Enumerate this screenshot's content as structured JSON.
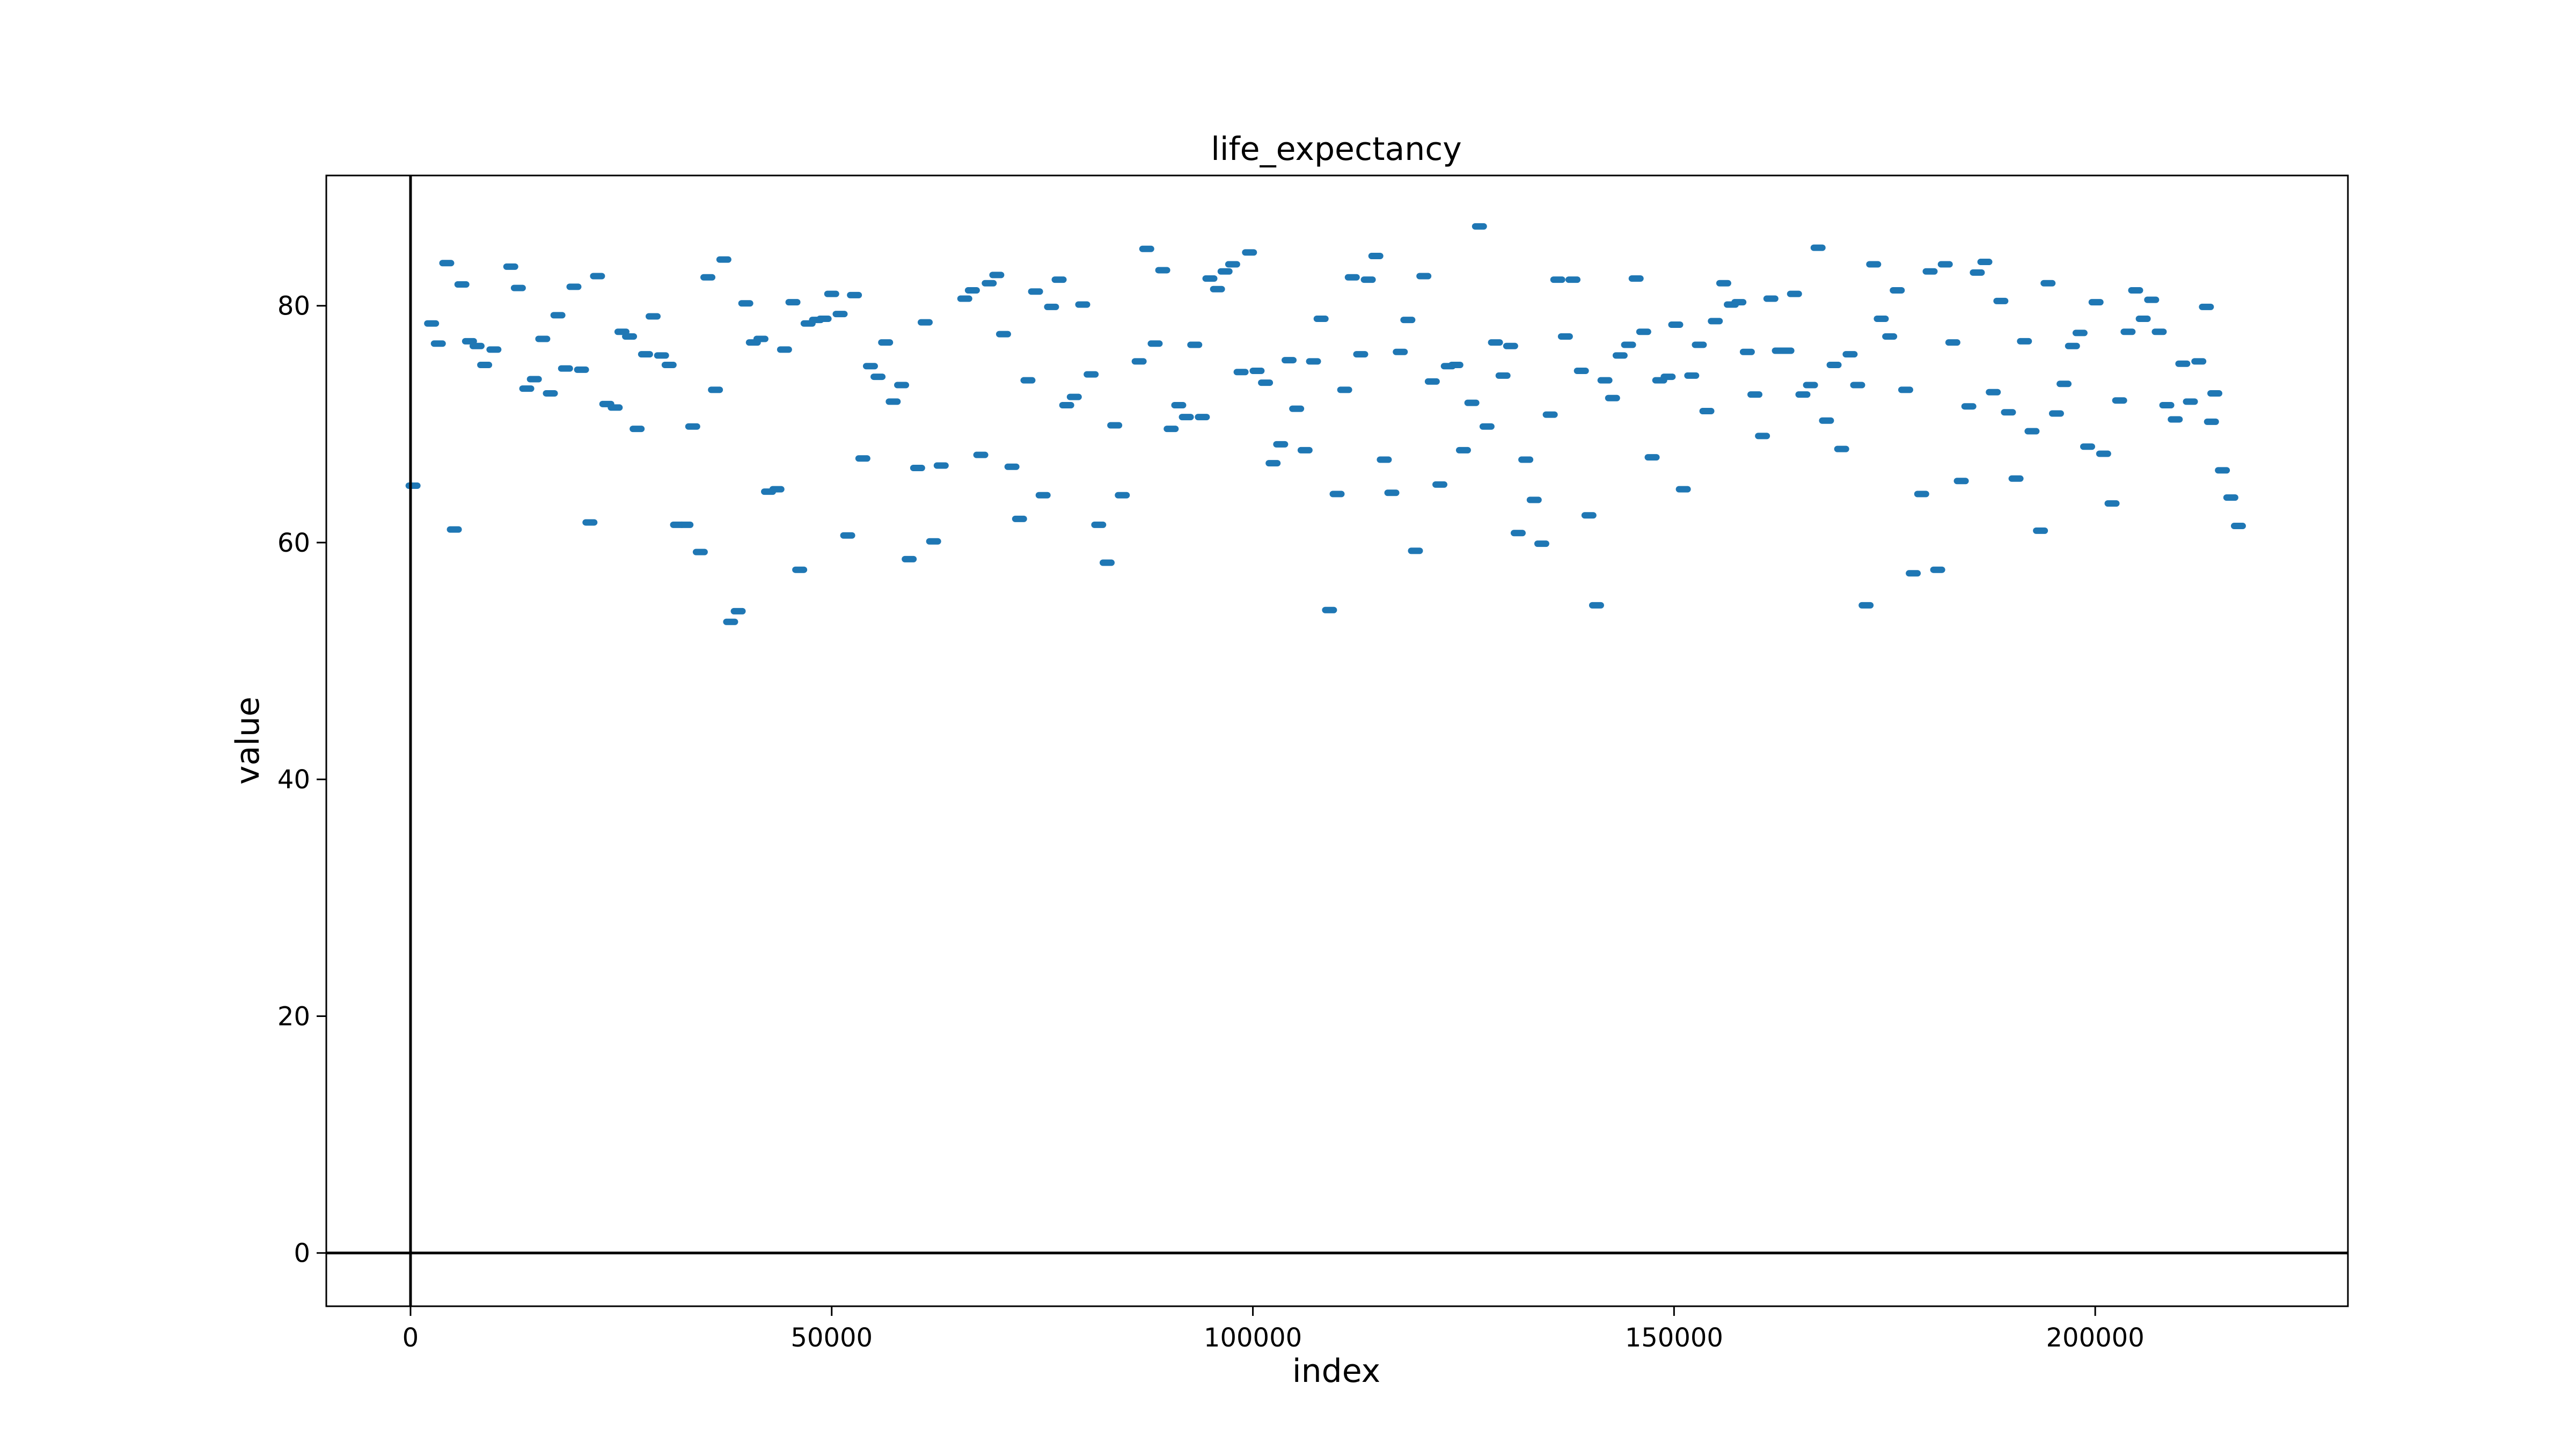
{
  "chart_data": {
    "type": "scatter",
    "title": "life_expectancy",
    "xlabel": "index",
    "ylabel": "value",
    "xlim": [
      -10000,
      230000
    ],
    "ylim": [
      -4.5,
      91
    ],
    "xticks": [
      0,
      50000,
      100000,
      150000,
      200000
    ],
    "yticks": [
      0,
      20,
      40,
      60,
      80
    ],
    "reference_lines": {
      "x": 0,
      "y": 0
    },
    "grid": false,
    "legend": "none",
    "colors": {
      "points": "#1f77b4",
      "axes": "#000000"
    },
    "series": [
      {
        "points": [
          [
            300,
            64.8
          ],
          [
            2500,
            78.5
          ],
          [
            3300,
            76.8
          ],
          [
            4300,
            83.6
          ],
          [
            5200,
            61.1
          ],
          [
            6100,
            81.8
          ],
          [
            7000,
            77.0
          ],
          [
            7900,
            76.6
          ],
          [
            8800,
            75.0
          ],
          [
            9900,
            76.3
          ],
          [
            11900,
            83.3
          ],
          [
            12800,
            81.5
          ],
          [
            13800,
            73.0
          ],
          [
            14700,
            73.8
          ],
          [
            15700,
            77.2
          ],
          [
            16600,
            72.6
          ],
          [
            17500,
            79.2
          ],
          [
            18400,
            74.7
          ],
          [
            19400,
            81.6
          ],
          [
            20300,
            74.6
          ],
          [
            21300,
            61.7
          ],
          [
            22200,
            82.5
          ],
          [
            23300,
            71.7
          ],
          [
            24300,
            71.4
          ],
          [
            25100,
            77.8
          ],
          [
            26000,
            77.4
          ],
          [
            26900,
            69.6
          ],
          [
            27900,
            75.9
          ],
          [
            28800,
            79.1
          ],
          [
            29800,
            75.8
          ],
          [
            30700,
            75.0
          ],
          [
            31700,
            61.5
          ],
          [
            32700,
            61.5
          ],
          [
            33500,
            69.8
          ],
          [
            34400,
            59.2
          ],
          [
            35300,
            82.4
          ],
          [
            36200,
            72.9
          ],
          [
            37200,
            83.9
          ],
          [
            38000,
            53.3
          ],
          [
            38900,
            54.2
          ],
          [
            39800,
            80.2
          ],
          [
            40700,
            76.9
          ],
          [
            41600,
            77.2
          ],
          [
            42500,
            64.3
          ],
          [
            43500,
            64.5
          ],
          [
            44400,
            76.3
          ],
          [
            45400,
            80.3
          ],
          [
            46200,
            57.7
          ],
          [
            47200,
            78.5
          ],
          [
            48200,
            78.8
          ],
          [
            49100,
            78.9
          ],
          [
            50000,
            81.0
          ],
          [
            51000,
            79.3
          ],
          [
            51900,
            60.6
          ],
          [
            52700,
            80.9
          ],
          [
            53700,
            67.1
          ],
          [
            54600,
            74.9
          ],
          [
            55500,
            74.0
          ],
          [
            56400,
            76.9
          ],
          [
            57300,
            71.9
          ],
          [
            58300,
            73.3
          ],
          [
            59200,
            58.6
          ],
          [
            60200,
            66.3
          ],
          [
            61100,
            78.6
          ],
          [
            62100,
            60.1
          ],
          [
            63000,
            66.5
          ],
          [
            65800,
            80.6
          ],
          [
            66700,
            81.3
          ],
          [
            67700,
            67.4
          ],
          [
            68700,
            81.9
          ],
          [
            69600,
            82.6
          ],
          [
            70400,
            77.6
          ],
          [
            71400,
            66.4
          ],
          [
            72300,
            62.0
          ],
          [
            73300,
            73.7
          ],
          [
            74200,
            81.2
          ],
          [
            75100,
            64.0
          ],
          [
            76100,
            79.9
          ],
          [
            77000,
            82.2
          ],
          [
            77900,
            71.6
          ],
          [
            78800,
            72.3
          ],
          [
            79800,
            80.1
          ],
          [
            80800,
            74.2
          ],
          [
            81700,
            61.5
          ],
          [
            82700,
            58.3
          ],
          [
            83600,
            69.9
          ],
          [
            84500,
            64.0
          ],
          [
            86500,
            75.3
          ],
          [
            87400,
            84.8
          ],
          [
            88400,
            76.8
          ],
          [
            89300,
            83.0
          ],
          [
            90300,
            69.6
          ],
          [
            91200,
            71.6
          ],
          [
            92100,
            70.6
          ],
          [
            93100,
            76.7
          ],
          [
            94000,
            70.6
          ],
          [
            94900,
            82.3
          ],
          [
            95800,
            81.4
          ],
          [
            96700,
            82.9
          ],
          [
            97600,
            83.5
          ],
          [
            98600,
            74.4
          ],
          [
            99600,
            84.5
          ],
          [
            100500,
            74.5
          ],
          [
            101500,
            73.5
          ],
          [
            102400,
            66.7
          ],
          [
            103300,
            68.3
          ],
          [
            104300,
            75.4
          ],
          [
            105200,
            71.3
          ],
          [
            106200,
            67.8
          ],
          [
            107200,
            75.3
          ],
          [
            108100,
            78.9
          ],
          [
            109100,
            54.3
          ],
          [
            110000,
            64.1
          ],
          [
            110900,
            72.9
          ],
          [
            111800,
            82.4
          ],
          [
            112800,
            75.9
          ],
          [
            113700,
            82.2
          ],
          [
            114600,
            84.2
          ],
          [
            115600,
            67.0
          ],
          [
            116500,
            64.2
          ],
          [
            117500,
            76.1
          ],
          [
            118400,
            78.8
          ],
          [
            119300,
            59.3
          ],
          [
            120300,
            82.5
          ],
          [
            121300,
            73.6
          ],
          [
            122200,
            64.9
          ],
          [
            123200,
            74.9
          ],
          [
            124100,
            75.0
          ],
          [
            125000,
            67.8
          ],
          [
            126000,
            71.8
          ],
          [
            126900,
            86.7
          ],
          [
            127800,
            69.8
          ],
          [
            128800,
            76.9
          ],
          [
            129700,
            74.1
          ],
          [
            130600,
            76.6
          ],
          [
            131500,
            60.8
          ],
          [
            132400,
            67.0
          ],
          [
            133400,
            63.6
          ],
          [
            134300,
            59.9
          ],
          [
            135300,
            70.8
          ],
          [
            136200,
            82.2
          ],
          [
            137100,
            77.4
          ],
          [
            138000,
            82.2
          ],
          [
            139000,
            74.5
          ],
          [
            139900,
            62.3
          ],
          [
            140800,
            54.7
          ],
          [
            141800,
            73.7
          ],
          [
            142700,
            72.2
          ],
          [
            143600,
            75.8
          ],
          [
            144600,
            76.7
          ],
          [
            145500,
            82.3
          ],
          [
            146400,
            77.8
          ],
          [
            147400,
            67.2
          ],
          [
            148300,
            73.7
          ],
          [
            149300,
            74.0
          ],
          [
            150200,
            78.4
          ],
          [
            151100,
            64.5
          ],
          [
            152100,
            74.1
          ],
          [
            153000,
            76.7
          ],
          [
            153900,
            71.1
          ],
          [
            154900,
            78.7
          ],
          [
            155900,
            81.9
          ],
          [
            156800,
            80.1
          ],
          [
            157700,
            80.3
          ],
          [
            158700,
            76.1
          ],
          [
            159600,
            72.5
          ],
          [
            160500,
            69.0
          ],
          [
            161500,
            80.6
          ],
          [
            162500,
            76.2
          ],
          [
            163400,
            76.2
          ],
          [
            164300,
            81.0
          ],
          [
            165300,
            72.5
          ],
          [
            166200,
            73.3
          ],
          [
            167100,
            84.9
          ],
          [
            168100,
            70.3
          ],
          [
            169000,
            75.0
          ],
          [
            169900,
            67.9
          ],
          [
            170900,
            75.9
          ],
          [
            171800,
            73.3
          ],
          [
            172800,
            54.7
          ],
          [
            173700,
            83.5
          ],
          [
            174600,
            78.9
          ],
          [
            175600,
            77.4
          ],
          [
            176500,
            81.3
          ],
          [
            177500,
            72.9
          ],
          [
            178400,
            57.4
          ],
          [
            179400,
            64.1
          ],
          [
            180400,
            82.9
          ],
          [
            181300,
            57.7
          ],
          [
            182200,
            83.5
          ],
          [
            183100,
            76.9
          ],
          [
            184100,
            65.2
          ],
          [
            185000,
            71.5
          ],
          [
            186000,
            82.8
          ],
          [
            186900,
            83.7
          ],
          [
            187900,
            72.7
          ],
          [
            188800,
            80.4
          ],
          [
            189700,
            71.0
          ],
          [
            190600,
            65.4
          ],
          [
            191600,
            77.0
          ],
          [
            192500,
            69.4
          ],
          [
            193500,
            61.0
          ],
          [
            194400,
            81.9
          ],
          [
            195400,
            70.9
          ],
          [
            196300,
            73.4
          ],
          [
            197300,
            76.6
          ],
          [
            198200,
            77.7
          ],
          [
            199100,
            68.1
          ],
          [
            200100,
            80.3
          ],
          [
            201000,
            67.5
          ],
          [
            202000,
            63.3
          ],
          [
            202900,
            72.0
          ],
          [
            203900,
            77.8
          ],
          [
            204800,
            81.3
          ],
          [
            205700,
            78.9
          ],
          [
            206700,
            80.5
          ],
          [
            207600,
            77.8
          ],
          [
            208500,
            71.6
          ],
          [
            209500,
            70.4
          ],
          [
            210400,
            75.1
          ],
          [
            211300,
            71.9
          ],
          [
            212300,
            75.3
          ],
          [
            213200,
            79.9
          ],
          [
            213800,
            70.2
          ],
          [
            214200,
            72.6
          ],
          [
            215100,
            66.1
          ],
          [
            216100,
            63.8
          ],
          [
            217000,
            61.4
          ]
        ]
      }
    ]
  }
}
